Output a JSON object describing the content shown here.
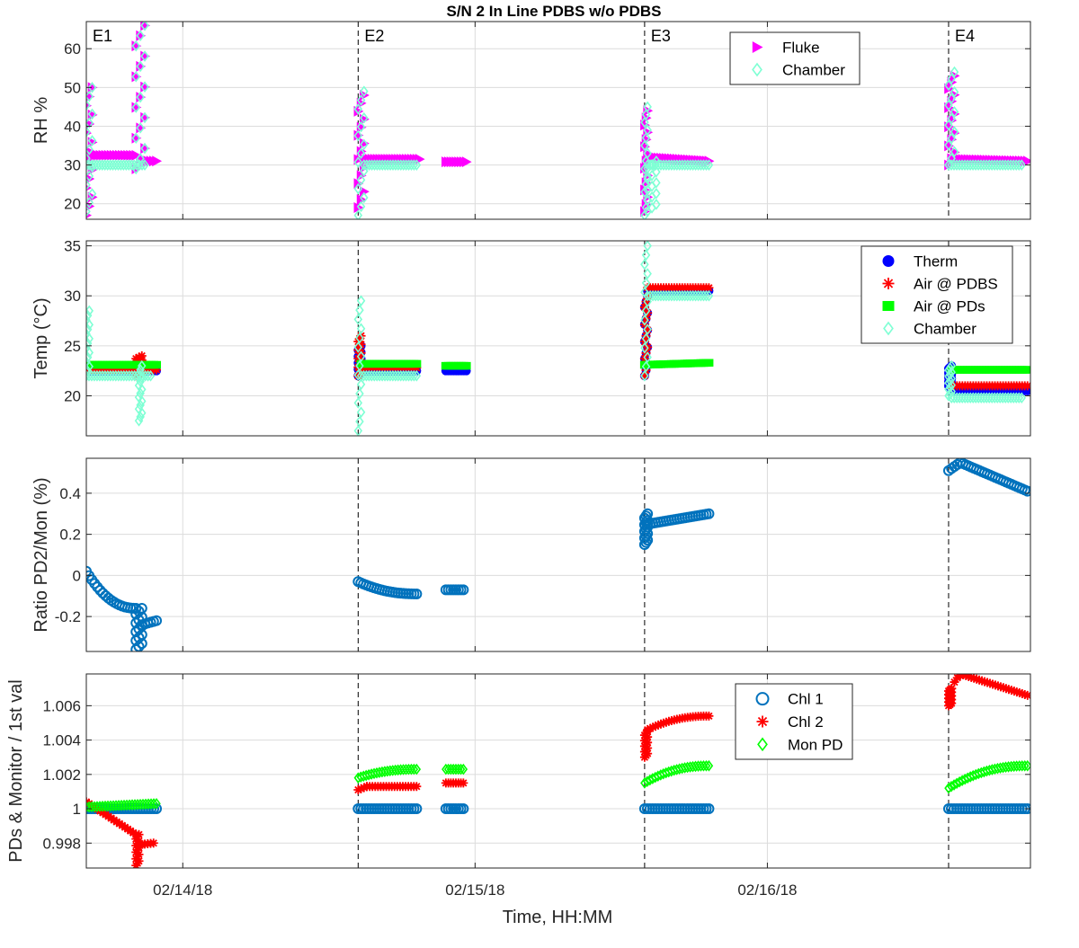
{
  "chart_data": {
    "type": "scatter",
    "title": "S/N 2 In Line PDBS w/o PDBS",
    "xlabel": "Time, HH:MM",
    "x_domain_days": [
      0,
      3.23
    ],
    "x_ticks": [
      {
        "value": 0.33,
        "label": "02/14/18"
      },
      {
        "value": 1.33,
        "label": "02/15/18"
      },
      {
        "value": 2.33,
        "label": "02/16/18"
      }
    ],
    "events": [
      {
        "label": "E1",
        "x": 0.0
      },
      {
        "label": "E2",
        "x": 0.93
      },
      {
        "label": "E3",
        "x": 1.91
      },
      {
        "label": "E4",
        "x": 2.95
      }
    ],
    "colors": {
      "fluke": "#ff00ff",
      "chamber": "#7fffd4",
      "therm": "#0000ff",
      "air_pdbs": "#ff0000",
      "air_pds": "#00ff00",
      "ratio": "#0072bd",
      "chl1": "#0072bd",
      "chl2": "#ff0000",
      "mon_pd": "#00ff00"
    },
    "panels": [
      {
        "name": "rh",
        "ylabel": "RH %",
        "ylim": [
          16,
          67
        ],
        "yticks": [
          20,
          30,
          40,
          50,
          60
        ],
        "ytick_labels": [
          "20",
          "30",
          "40",
          "50",
          "60"
        ],
        "legend": [
          {
            "label": "Fluke",
            "marker": "triangle",
            "color": "#ff00ff"
          },
          {
            "label": "Chamber",
            "marker": "diamond",
            "color": "#7fffd4"
          }
        ],
        "series": [
          {
            "name": "Fluke",
            "marker": "triangle",
            "color": "#ff00ff",
            "size": 6,
            "segments": [
              {
                "x0": 0.0,
                "x1": 0.02,
                "yv": [
                  17,
                  50
                ]
              },
              {
                "x0": 0.0,
                "x1": 0.17,
                "y0": 32.5,
                "y1": 32.5
              },
              {
                "x0": 0.17,
                "x1": 0.2,
                "yv": [
                  29,
                  66
                ]
              },
              {
                "x0": 0.2,
                "x1": 0.24,
                "y0": 31,
                "y1": 31
              },
              {
                "x0": 0.93,
                "x1": 0.95,
                "yv": [
                  19,
                  48
                ]
              },
              {
                "x0": 0.95,
                "x1": 1.14,
                "y0": 31.5,
                "y1": 31.5
              },
              {
                "x0": 1.23,
                "x1": 1.3,
                "y0": 30.8,
                "y1": 30.8
              },
              {
                "x0": 1.91,
                "x1": 1.92,
                "yv": [
                  18,
                  44
                ]
              },
              {
                "x0": 1.92,
                "x1": 2.13,
                "y0": 32,
                "y1": 31
              },
              {
                "x0": 2.95,
                "x1": 2.97,
                "yv": [
                  30,
                  53
                ]
              },
              {
                "x0": 2.97,
                "x1": 3.22,
                "y0": 31.5,
                "y1": 31
              }
            ]
          },
          {
            "name": "Chamber",
            "marker": "diamond",
            "color": "#7fffd4",
            "size": 5,
            "segments": [
              {
                "x0": 0.0,
                "x1": 0.02,
                "yv": [
                  18,
                  50
                ]
              },
              {
                "x0": 0.0,
                "x1": 0.2,
                "y0": 30,
                "y1": 30
              },
              {
                "x0": 0.17,
                "x1": 0.2,
                "yv": [
                  29,
                  66
                ]
              },
              {
                "x0": 0.93,
                "x1": 0.95,
                "yv": [
                  17,
                  49
                ]
              },
              {
                "x0": 0.95,
                "x1": 1.13,
                "y0": 30,
                "y1": 30
              },
              {
                "x0": 1.91,
                "x1": 1.92,
                "yv": [
                  17,
                  45
                ]
              },
              {
                "x0": 1.92,
                "x1": 1.95,
                "yv": [
                  18,
                  31
                ]
              },
              {
                "x0": 1.92,
                "x1": 2.13,
                "y0": 30,
                "y1": 30
              },
              {
                "x0": 2.95,
                "x1": 2.97,
                "yv": [
                  30,
                  54
                ]
              },
              {
                "x0": 2.95,
                "x1": 3.2,
                "y0": 30,
                "y1": 30
              }
            ]
          }
        ],
        "labels_events": true
      },
      {
        "name": "temp",
        "ylabel": "Temp (°C)",
        "ylim": [
          16,
          35.5
        ],
        "yticks": [
          20,
          25,
          30,
          35
        ],
        "ytick_labels": [
          "20",
          "25",
          "30",
          "35"
        ],
        "legend": [
          {
            "label": "Therm",
            "marker": "circle-filled",
            "color": "#0000ff"
          },
          {
            "label": "Air @ PDBS",
            "marker": "asterisk",
            "color": "#ff0000"
          },
          {
            "label": "Air @ PDs",
            "marker": "square",
            "color": "#00ff00"
          },
          {
            "label": "Chamber",
            "marker": "diamond",
            "color": "#7fffd4"
          }
        ],
        "series": [
          {
            "name": "Therm",
            "marker": "circle-filled",
            "color": "#0000ff",
            "size": 5,
            "segments": [
              {
                "x0": 0.0,
                "x1": 0.24,
                "y0": 22.5,
                "y1": 22.5
              },
              {
                "x0": 0.93,
                "x1": 0.94,
                "yv": [
                  22,
                  25
                ]
              },
              {
                "x0": 0.94,
                "x1": 1.13,
                "y0": 22.5,
                "y1": 22.5
              },
              {
                "x0": 1.23,
                "x1": 1.3,
                "y0": 22.5,
                "y1": 22.5
              },
              {
                "x0": 1.91,
                "x1": 1.92,
                "yv": [
                  22,
                  30
                ]
              },
              {
                "x0": 1.92,
                "x1": 2.13,
                "y0": 30.5,
                "y1": 30.5
              },
              {
                "x0": 2.95,
                "x1": 2.96,
                "yv": [
                  21,
                  23
                ]
              },
              {
                "x0": 2.96,
                "x1": 3.22,
                "y0": 20.5,
                "y1": 20.5
              }
            ]
          },
          {
            "name": "Air @ PDBS",
            "marker": "asterisk",
            "color": "#ff0000",
            "size": 5,
            "segments": [
              {
                "x0": 0.0,
                "x1": 0.24,
                "y0": 22.6,
                "y1": 22.6
              },
              {
                "x0": 0.17,
                "x1": 0.19,
                "yv": [
                  22,
                  24
                ]
              },
              {
                "x0": 0.93,
                "x1": 0.94,
                "yv": [
                  22,
                  26
                ]
              },
              {
                "x0": 0.94,
                "x1": 1.13,
                "y0": 22.8,
                "y1": 22.8
              },
              {
                "x0": 1.91,
                "x1": 1.92,
                "yv": [
                  22,
                  30
                ]
              },
              {
                "x0": 1.92,
                "x1": 2.13,
                "y0": 30.8,
                "y1": 30.8
              },
              {
                "x0": 2.96,
                "x1": 3.22,
                "y0": 21,
                "y1": 21
              }
            ]
          },
          {
            "name": "Air @ PDs",
            "marker": "square",
            "color": "#00ff00",
            "size": 5,
            "segments": [
              {
                "x0": 0.0,
                "x1": 0.24,
                "y0": 23.1,
                "y1": 23.1
              },
              {
                "x0": 0.94,
                "x1": 1.13,
                "y0": 23.2,
                "y1": 23.2
              },
              {
                "x0": 1.23,
                "x1": 1.3,
                "y0": 23,
                "y1": 23
              },
              {
                "x0": 1.91,
                "x1": 2.13,
                "y0": 23.1,
                "y1": 23.3
              },
              {
                "x0": 2.96,
                "x1": 3.22,
                "y0": 22.6,
                "y1": 22.6
              }
            ]
          },
          {
            "name": "Chamber",
            "marker": "diamond",
            "color": "#7fffd4",
            "size": 5,
            "segments": [
              {
                "x0": 0.0,
                "x1": 0.01,
                "yv": [
                  22,
                  28.5
                ]
              },
              {
                "x0": 0.0,
                "x1": 0.22,
                "y0": 22,
                "y1": 22
              },
              {
                "x0": 0.18,
                "x1": 0.19,
                "yv": [
                  17.5,
                  23
                ]
              },
              {
                "x0": 0.93,
                "x1": 0.94,
                "yv": [
                  16.5,
                  29.5
                ]
              },
              {
                "x0": 0.94,
                "x1": 1.13,
                "y0": 22,
                "y1": 22
              },
              {
                "x0": 1.91,
                "x1": 1.92,
                "yv": [
                  22,
                  35
                ]
              },
              {
                "x0": 1.92,
                "x1": 2.13,
                "y0": 30,
                "y1": 30
              },
              {
                "x0": 2.95,
                "x1": 2.96,
                "yv": [
                  20,
                  23
                ]
              },
              {
                "x0": 2.96,
                "x1": 3.2,
                "y0": 19.8,
                "y1": 19.8
              }
            ]
          }
        ],
        "labels_events": false
      },
      {
        "name": "ratio",
        "ylabel": "Ratio PD2/Mon (%)",
        "ylim": [
          -0.37,
          0.57
        ],
        "yticks": [
          -0.2,
          0,
          0.2,
          0.4
        ],
        "ytick_labels": [
          "-0.2",
          "0",
          "0.2",
          "0.4"
        ],
        "legend": [],
        "series": [
          {
            "name": "Ratio",
            "marker": "circle-open",
            "color": "#0072bd",
            "size": 5,
            "segments": [
              {
                "x0": 0.0,
                "x1": 0.17,
                "y0": 0.02,
                "y1": -0.16,
                "curve": "decay"
              },
              {
                "x0": 0.17,
                "x1": 0.19,
                "yv": [
                  -0.36,
                  -0.16
                ]
              },
              {
                "x0": 0.19,
                "x1": 0.24,
                "y0": -0.24,
                "y1": -0.22
              },
              {
                "x0": 0.93,
                "x1": 1.13,
                "y0": -0.03,
                "y1": -0.09,
                "curve": "decay"
              },
              {
                "x0": 1.23,
                "x1": 1.29,
                "y0": -0.07,
                "y1": -0.07
              },
              {
                "x0": 1.91,
                "x1": 1.92,
                "yv": [
                  0.15,
                  0.3
                ]
              },
              {
                "x0": 1.92,
                "x1": 2.13,
                "y0": 0.25,
                "y1": 0.3
              },
              {
                "x0": 2.95,
                "x1": 2.99,
                "y0": 0.51,
                "y1": 0.55
              },
              {
                "x0": 2.99,
                "x1": 3.22,
                "y0": 0.55,
                "y1": 0.41
              }
            ]
          }
        ],
        "labels_events": false
      },
      {
        "name": "pds",
        "ylabel": "PDs & Monitor / 1st val",
        "ylim": [
          0.99655,
          1.00785
        ],
        "yticks": [
          0.998,
          1,
          1.002,
          1.004,
          1.006
        ],
        "ytick_labels": [
          "0.998",
          "1",
          "1.002",
          "1.004",
          "1.006"
        ],
        "legend": [
          {
            "label": "Chl 1",
            "marker": "circle-open",
            "color": "#0072bd"
          },
          {
            "label": "Chl 2",
            "marker": "asterisk",
            "color": "#ff0000"
          },
          {
            "label": "Mon PD",
            "marker": "diamond",
            "color": "#00ff00"
          }
        ],
        "series": [
          {
            "name": "Chl 1",
            "marker": "circle-open",
            "color": "#0072bd",
            "size": 5,
            "segments": [
              {
                "x0": 0.0,
                "x1": 0.24,
                "y0": 1.0,
                "y1": 1.0
              },
              {
                "x0": 0.93,
                "x1": 1.13,
                "y0": 1.0,
                "y1": 1.0
              },
              {
                "x0": 1.23,
                "x1": 1.29,
                "y0": 1.0,
                "y1": 1.0
              },
              {
                "x0": 1.91,
                "x1": 2.13,
                "y0": 1.0,
                "y1": 1.0
              },
              {
                "x0": 2.95,
                "x1": 3.22,
                "y0": 1.0,
                "y1": 1.0
              }
            ]
          },
          {
            "name": "Chl 2",
            "marker": "asterisk",
            "color": "#ff0000",
            "size": 5,
            "segments": [
              {
                "x0": 0.0,
                "x1": 0.17,
                "y0": 1.0004,
                "y1": 0.9985
              },
              {
                "x0": 0.17,
                "x1": 0.18,
                "yv": [
                  0.9967,
                  0.9985
                ]
              },
              {
                "x0": 0.18,
                "x1": 0.23,
                "y0": 0.9979,
                "y1": 0.998
              },
              {
                "x0": 0.93,
                "x1": 0.96,
                "y0": 1.0011,
                "y1": 1.0013
              },
              {
                "x0": 0.96,
                "x1": 1.13,
                "y0": 1.0013,
                "y1": 1.0013
              },
              {
                "x0": 1.23,
                "x1": 1.29,
                "y0": 1.0015,
                "y1": 1.0015
              },
              {
                "x0": 1.91,
                "x1": 1.92,
                "yv": [
                  1.003,
                  1.0045
                ]
              },
              {
                "x0": 1.92,
                "x1": 2.13,
                "y0": 1.0046,
                "y1": 1.0054,
                "curve": "rise"
              },
              {
                "x0": 2.95,
                "x1": 2.96,
                "yv": [
                  1.006,
                  1.007
                ]
              },
              {
                "x0": 2.96,
                "x1": 3.0,
                "y0": 1.007,
                "y1": 1.0078,
                "curve": "rise"
              },
              {
                "x0": 3.0,
                "x1": 3.22,
                "y0": 1.0078,
                "y1": 1.0066
              }
            ]
          },
          {
            "name": "Mon PD",
            "marker": "diamond",
            "color": "#00ff00",
            "size": 5,
            "segments": [
              {
                "x0": 0.0,
                "x1": 0.24,
                "y0": 1.0001,
                "y1": 1.0003
              },
              {
                "x0": 0.93,
                "x1": 1.13,
                "y0": 1.0018,
                "y1": 1.0023,
                "curve": "rise"
              },
              {
                "x0": 1.23,
                "x1": 1.29,
                "y0": 1.0023,
                "y1": 1.0023
              },
              {
                "x0": 1.91,
                "x1": 2.13,
                "y0": 1.0015,
                "y1": 1.0025,
                "curve": "rise"
              },
              {
                "x0": 2.95,
                "x1": 3.22,
                "y0": 1.0012,
                "y1": 1.0025,
                "curve": "rise"
              }
            ]
          }
        ],
        "labels_events": false
      }
    ]
  }
}
